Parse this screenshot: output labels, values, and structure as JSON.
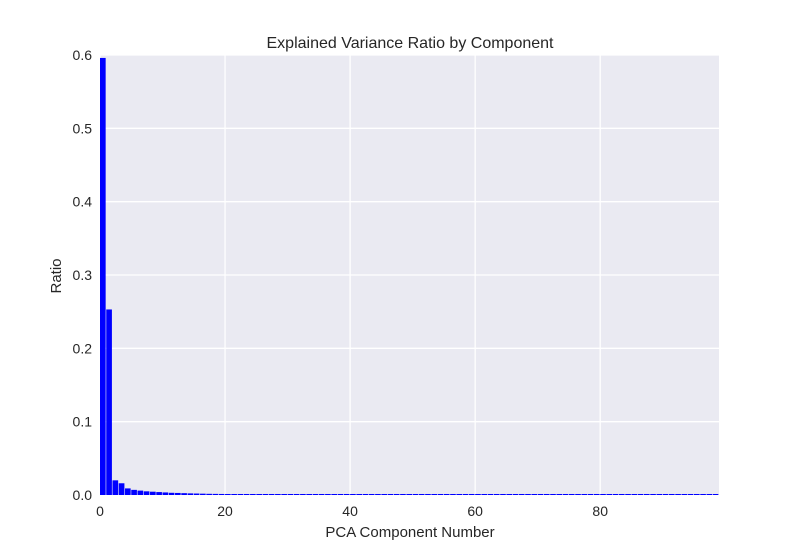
{
  "chart_data": {
    "type": "bar",
    "title": "Explained Variance Ratio by Component",
    "xlabel": "PCA Component Number",
    "ylabel": "Ratio",
    "xlim": [
      0,
      99
    ],
    "ylim": [
      0,
      0.6
    ],
    "xticks": [
      "0",
      "20",
      "40",
      "60",
      "80"
    ],
    "yticks": [
      "0.0",
      "0.1",
      "0.2",
      "0.3",
      "0.4",
      "0.5",
      "0.6"
    ],
    "grid": true,
    "colors": {
      "bar": "#0000ff",
      "background": "#eaeaf2",
      "grid": "#ffffff"
    },
    "x": [
      0,
      1,
      2,
      3,
      4,
      5,
      6,
      7,
      8,
      9,
      10,
      11,
      12,
      13,
      14,
      15,
      16,
      17,
      18,
      19,
      20,
      21,
      22,
      23,
      24,
      25,
      26,
      27,
      28,
      29,
      30,
      31,
      32,
      33,
      34,
      35,
      36,
      37,
      38,
      39,
      40,
      41,
      42,
      43,
      44,
      45,
      46,
      47,
      48,
      49,
      50,
      51,
      52,
      53,
      54,
      55,
      56,
      57,
      58,
      59,
      60,
      61,
      62,
      63,
      64,
      65,
      66,
      67,
      68,
      69,
      70,
      71,
      72,
      73,
      74,
      75,
      76,
      77,
      78,
      79,
      80,
      81,
      82,
      83,
      84,
      85,
      86,
      87,
      88,
      89,
      90,
      91,
      92,
      93,
      94,
      95,
      96,
      97,
      98,
      99
    ],
    "values": [
      0.596,
      0.253,
      0.02,
      0.016,
      0.009,
      0.007,
      0.006,
      0.005,
      0.0045,
      0.004,
      0.0035,
      0.003,
      0.0028,
      0.0025,
      0.0022,
      0.002,
      0.0018,
      0.0016,
      0.0015,
      0.0014,
      0.0013,
      0.0012,
      0.0011,
      0.001,
      0.001,
      0.0009,
      0.0009,
      0.0008,
      0.0008,
      0.0007,
      0.0007,
      0.0007,
      0.0006,
      0.0006,
      0.0006,
      0.0005,
      0.0005,
      0.0005,
      0.0005,
      0.0004,
      0.0004,
      0.0004,
      0.0004,
      0.0003,
      0.0003,
      0.0003,
      0.0001,
      0.0001,
      0.0001,
      0.0001,
      0.0001,
      0.0001,
      0.0001,
      0.0001,
      0.0001,
      0.0001,
      0.0001,
      0.0001,
      0.0001,
      0.0001,
      0.0001,
      0.0001,
      0.0001,
      0.0001,
      0.0001,
      0.0001,
      0.0001,
      0.0001,
      0.0001,
      0.0001,
      0.0001,
      0.0001,
      0.0001,
      0.0001,
      0.0001,
      0.0001,
      0.0001,
      0.0001,
      0.0001,
      0.0001,
      0.0001,
      0.0001,
      0.0001,
      0.0001,
      0.0001,
      0.0001,
      0.0001,
      0.0001,
      0.0001,
      0.0001,
      0.0001,
      0.0001,
      0.0001,
      0.0001,
      0.0001,
      0.0001,
      0.0001,
      0.0001,
      0.0001,
      0.0001
    ]
  }
}
